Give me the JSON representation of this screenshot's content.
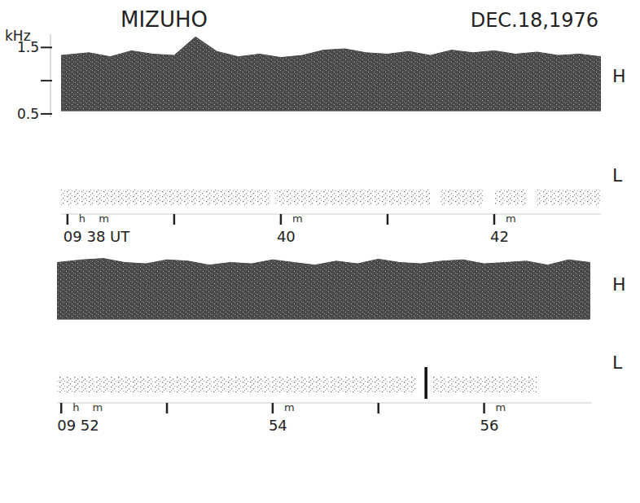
{
  "chart_data": [
    {
      "type": "spectrogram",
      "title": "MIZUHO",
      "subtitle": "DEC.18,1976",
      "y_label": "kHz",
      "ylim": [
        0.45,
        1.7
      ],
      "yticks": [
        1.5,
        {
          "value": 1,
          "label": null
        },
        0.5
      ],
      "xlim": [
        37.94,
        43.0
      ],
      "xticks": [
        {
          "value": 38,
          "label": "09 38 UT",
          "sub": "h m"
        },
        {
          "value": 39,
          "label": null
        },
        {
          "value": 40,
          "label": "40",
          "sub": "m"
        },
        {
          "value": 41,
          "label": null
        },
        {
          "value": 42,
          "label": "42",
          "sub": "m"
        }
      ],
      "x": [
        37.94,
        38.2,
        38.4,
        38.6,
        38.8,
        39.0,
        39.2,
        39.4,
        39.6,
        39.8,
        40.0,
        40.2,
        40.4,
        40.6,
        40.8,
        41.0,
        41.2,
        41.4,
        41.6,
        41.8,
        42.0,
        42.2,
        42.4,
        42.6,
        42.8,
        43.0
      ],
      "series": [
        {
          "name": "H",
          "type": "area",
          "color": "#4a4a4a",
          "values": [
            1.38,
            1.42,
            1.36,
            1.45,
            1.4,
            1.38,
            1.66,
            1.44,
            1.36,
            1.4,
            1.35,
            1.38,
            1.46,
            1.48,
            1.42,
            1.4,
            1.44,
            1.38,
            1.46,
            1.42,
            1.45,
            1.4,
            1.43,
            1.38,
            1.4,
            1.36
          ],
          "low": 0.55
        },
        {
          "name": "L",
          "type": "segments",
          "color": "#7a7a7a",
          "segments": [
            [
              37.94,
              39.9
            ],
            [
              39.95,
              41.4
            ],
            [
              41.5,
              41.9
            ],
            [
              42.0,
              42.3
            ],
            [
              42.4,
              43.0
            ]
          ]
        }
      ]
    },
    {
      "type": "spectrogram",
      "tick_labels": "x",
      "ylim": [
        0.45,
        1.7
      ],
      "xlim": [
        51.96,
        57.02
      ],
      "xticks": [
        {
          "value": 52,
          "label": "09 52",
          "sub": "h m"
        },
        {
          "value": 53,
          "label": null
        },
        {
          "value": 54,
          "label": "54",
          "sub": "m"
        },
        {
          "value": 55,
          "label": null
        },
        {
          "value": 56,
          "label": "56",
          "sub": "m"
        }
      ],
      "x": [
        51.96,
        52.2,
        52.4,
        52.6,
        52.8,
        53.0,
        53.2,
        53.4,
        53.6,
        53.8,
        54.0,
        54.2,
        54.4,
        54.6,
        54.8,
        55.0,
        55.2,
        55.4,
        55.6,
        55.8,
        56.0,
        56.2,
        56.4,
        56.6,
        56.8,
        57.0
      ],
      "series": [
        {
          "name": "H",
          "type": "area",
          "color": "#4a4a4a",
          "values": [
            1.4,
            1.44,
            1.46,
            1.4,
            1.38,
            1.44,
            1.42,
            1.36,
            1.4,
            1.38,
            1.44,
            1.4,
            1.36,
            1.42,
            1.38,
            1.45,
            1.4,
            1.38,
            1.42,
            1.44,
            1.38,
            1.4,
            1.42,
            1.36,
            1.44,
            1.4
          ],
          "low": 0.55
        },
        {
          "name": "L",
          "type": "segments",
          "color": "#7a7a7a",
          "segments": [
            [
              51.96,
              55.35
            ],
            [
              55.5,
              56.5
            ]
          ]
        }
      ],
      "events": [
        55.45
      ]
    }
  ]
}
